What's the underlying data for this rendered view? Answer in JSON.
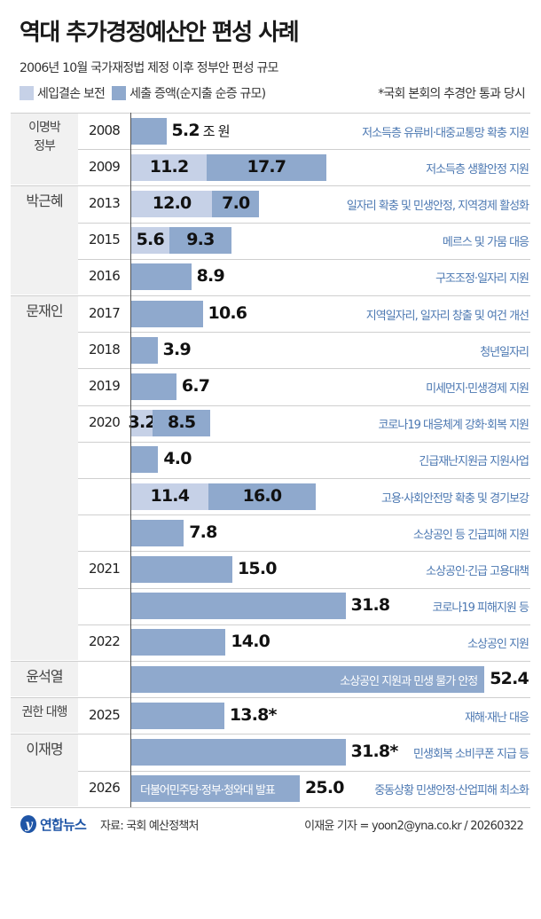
{
  "title": "역대 추가경정예산안 편성 사례",
  "subtitle": "2006년 10월 국가재정법 제정 이후 정부안 편성 규모",
  "legend": {
    "light": "세입결손 보전",
    "dark": "세출 증액(순지출 순증 규모)",
    "footnote": "*국회 본회의 추경안 통과 당시"
  },
  "colors": {
    "light": "#c6d1e7",
    "dark": "#8fa9cd",
    "note": "#4c78b2"
  },
  "footer": {
    "logo": "연합뉴스",
    "source": "자료: 국회 예산정책처",
    "credit": "이재윤 기자 = yoon2@yna.co.kr / 20260322"
  },
  "chart_data": {
    "type": "bar",
    "stacked": true,
    "orientation": "horizontal",
    "unit": "조 원",
    "series": [
      {
        "name": "세입결손 보전"
      },
      {
        "name": "세출 증액(순지출 순증 규모)"
      }
    ],
    "groups": [
      {
        "label": "이명박\n정부",
        "rows": [
          0,
          1
        ]
      },
      {
        "label": "박근혜",
        "rows": [
          2,
          3,
          4
        ]
      },
      {
        "label": "문재인",
        "rows": [
          5,
          6,
          7,
          8,
          9,
          10,
          11,
          12,
          13,
          14
        ]
      },
      {
        "label": "윤석열",
        "rows": [
          15
        ]
      },
      {
        "label": "권한 대행",
        "rows": [
          16
        ]
      },
      {
        "label": "이재명",
        "rows": [
          17,
          18
        ]
      }
    ],
    "rows": [
      {
        "year": "2008",
        "light": 0,
        "dark": 5.2,
        "value": "5.2",
        "suffix": "조 원",
        "note": "저소득층 유류비·대중교통망 확충 지원"
      },
      {
        "year": "2009",
        "light": 11.2,
        "dark": 17.7,
        "note": "저소득층 생활안정 지원"
      },
      {
        "year": "2013",
        "light": 12.0,
        "dark": 7.0,
        "note": "일자리 확충 및 민생안정, 지역경제 활성화"
      },
      {
        "year": "2015",
        "light": 5.6,
        "dark": 9.3,
        "note": "메르스 및 가뭄 대응"
      },
      {
        "year": "2016",
        "light": 0,
        "dark": 8.9,
        "value": "8.9",
        "note": "구조조정·일자리 지원"
      },
      {
        "year": "2017",
        "light": 0,
        "dark": 10.6,
        "value": "10.6",
        "note": "지역일자리, 일자리 창출 및 여건 개선"
      },
      {
        "year": "2018",
        "light": 0,
        "dark": 3.9,
        "value": "3.9",
        "note": "청년일자리"
      },
      {
        "year": "2019",
        "light": 0,
        "dark": 6.7,
        "value": "6.7",
        "note": "미세먼지·민생경제 지원"
      },
      {
        "year": "2020",
        "light": 3.2,
        "dark": 8.5,
        "note": "코로나19 대응체계 강화·회복 지원"
      },
      {
        "year": "",
        "light": 0,
        "dark": 4.0,
        "value": "4.0",
        "note": "긴급재난지원금 지원사업"
      },
      {
        "year": "",
        "light": 11.4,
        "dark": 16.0,
        "note": "고용·사회안전망 확충 및 경기보강"
      },
      {
        "year": "",
        "light": 0,
        "dark": 7.8,
        "value": "7.8",
        "note": "소상공인 등 긴급피해 지원"
      },
      {
        "year": "2021",
        "light": 0,
        "dark": 15.0,
        "value": "15.0",
        "note": "소상공인·긴급 고용대책"
      },
      {
        "year": "",
        "light": 0,
        "dark": 31.8,
        "value": "31.8",
        "note": "코로나19 피해지원 등"
      },
      {
        "year": "2022",
        "light": 0,
        "dark": 14.0,
        "value": "14.0",
        "note": "소상공인 지원"
      },
      {
        "year": "",
        "light": 0,
        "dark": 52.4,
        "value": "52.4",
        "inner": "소상공인 지원과 민생 물가 안정"
      },
      {
        "year": "2025",
        "light": 0,
        "dark": 13.8,
        "value": "13.8*",
        "note": "재해·재난 대응"
      },
      {
        "year": "",
        "light": 0,
        "dark": 31.8,
        "value": "31.8*",
        "note": "민생회복 소비쿠폰 지급 등"
      },
      {
        "year": "2026",
        "light": 0,
        "dark": 25.0,
        "value": "25.0",
        "inner": "더불어민주당·정부·청와대 발표",
        "note": "중동상황 민생안정·산업피해 최소화"
      }
    ]
  }
}
